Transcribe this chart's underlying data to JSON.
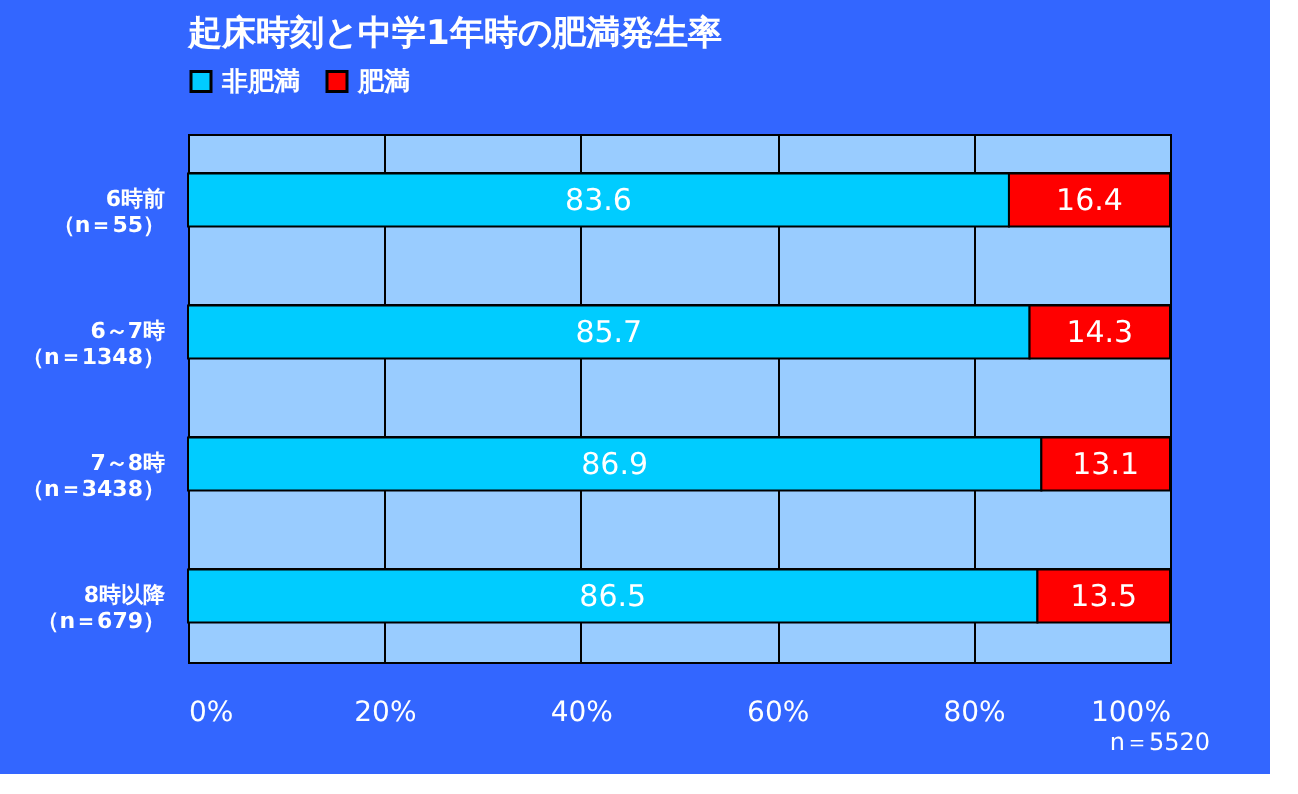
{
  "chart_data": {
    "type": "bar",
    "orientation": "horizontal",
    "stacked": true,
    "title": "起床時刻と中学1年時の肥満発生率",
    "categories": [
      "6時前（n＝55）",
      "6～7時（n＝1348）",
      "7～8時（n＝3438）",
      "8時以降（n＝679）"
    ],
    "series": [
      {
        "name": "非肥満",
        "color": "#00ccff",
        "values": [
          83.6,
          85.7,
          86.9,
          86.5
        ]
      },
      {
        "name": "肥満",
        "color": "#ff0000",
        "values": [
          16.4,
          14.3,
          13.1,
          13.5
        ]
      }
    ],
    "xlim": [
      0,
      100
    ],
    "xticks": [
      {
        "value": 0,
        "label": "0%"
      },
      {
        "value": 20,
        "label": "20%"
      },
      {
        "value": 40,
        "label": "40%"
      },
      {
        "value": 60,
        "label": "60%"
      },
      {
        "value": 80,
        "label": "80%"
      },
      {
        "value": 100,
        "label": "100%"
      }
    ],
    "data_labels": true,
    "grid": true,
    "legend": "top",
    "annotations": [
      "n＝5520"
    ]
  }
}
